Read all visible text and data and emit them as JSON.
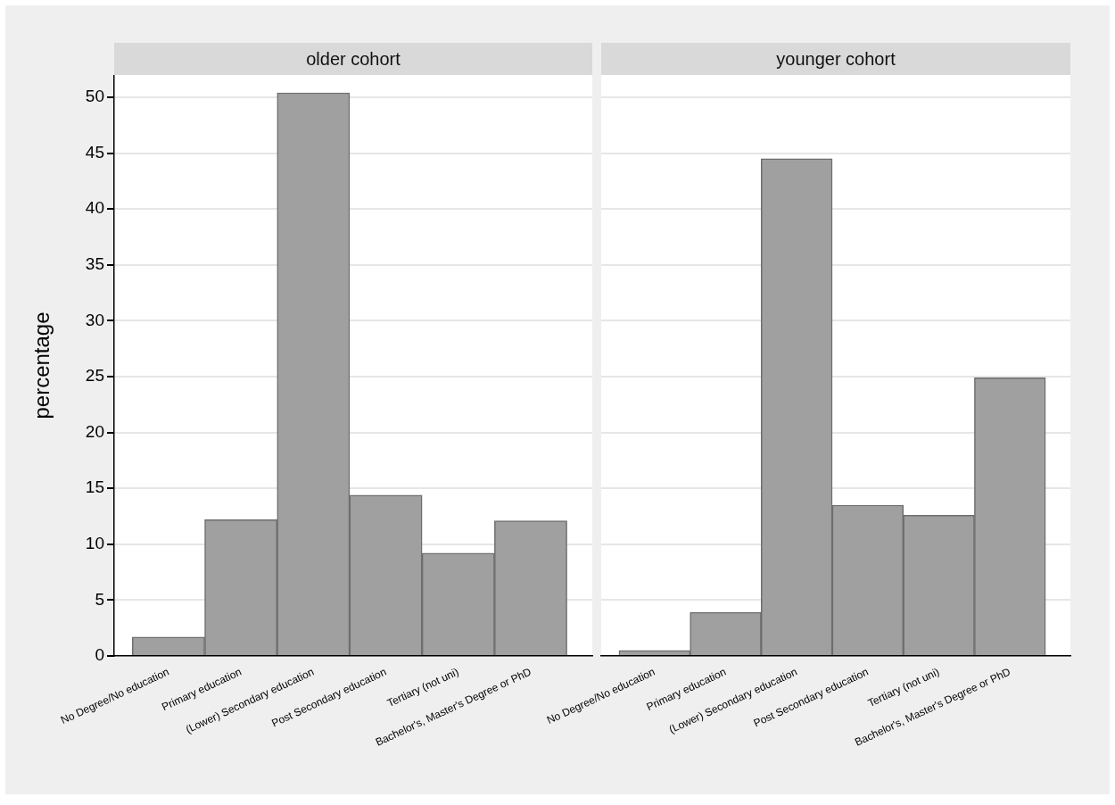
{
  "chart_data": [
    {
      "type": "bar",
      "title": "older cohort",
      "ylabel": "percentage",
      "categories": [
        "No Degree/No education",
        "Primary education",
        "(Lower) Secondary education",
        "Post Secondary education",
        "Tertiary (not uni)",
        "Bachelor's, Master's Degree or PhD"
      ],
      "values": [
        1.7,
        12.2,
        50.4,
        14.4,
        9.2,
        12.1
      ],
      "color": "#a0a0a0",
      "ylim": [
        0,
        52
      ],
      "yticks": [
        0,
        5,
        10,
        15,
        20,
        25,
        30,
        35,
        40,
        45,
        50
      ],
      "grid": "y"
    },
    {
      "type": "bar",
      "title": "younger cohort",
      "categories": [
        "No Degree/No education",
        "Primary education",
        "(Lower) Secondary education",
        "Post Secondary education",
        "Tertiary (not uni)",
        "Bachelor's, Master's Degree or PhD"
      ],
      "values": [
        0.5,
        3.9,
        44.5,
        13.5,
        12.6,
        24.9
      ],
      "color": "#a0a0a0",
      "ylim": [
        0,
        52
      ],
      "yticks": [
        0,
        5,
        10,
        15,
        20,
        25,
        30,
        35,
        40,
        45,
        50
      ],
      "grid": "y",
      "tick_labels": "x"
    }
  ]
}
